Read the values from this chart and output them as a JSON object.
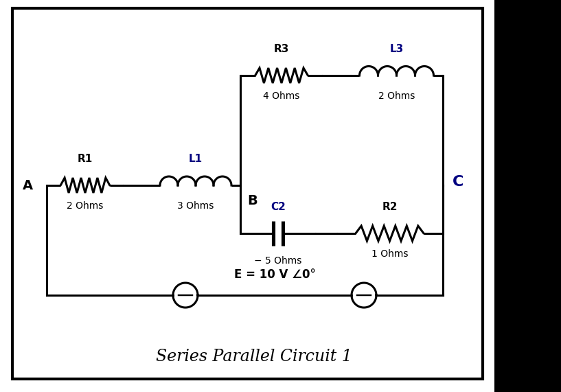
{
  "title": "Series Parallel Circuit 1",
  "title_fontsize": 17,
  "background_color": "#ffffff",
  "border_color": "#000000",
  "label_A": "A",
  "label_B": "B",
  "label_C": "C",
  "R1_label": "R1",
  "R1_value": "2 Ohms",
  "L1_label": "L1",
  "L1_value": "3 Ohms",
  "R3_label": "R3",
  "R3_value": "4 Ohms",
  "L3_label": "L3",
  "L3_value": "2 Ohms",
  "C2_label": "C2",
  "C2_value": "− 5 Ohms",
  "R2_label": "R2",
  "R2_value": "1 Ohms",
  "source_label": "E = 10 V ∠0°",
  "line_color": "#000000",
  "navy_color": "#000080",
  "black_color": "#000000"
}
